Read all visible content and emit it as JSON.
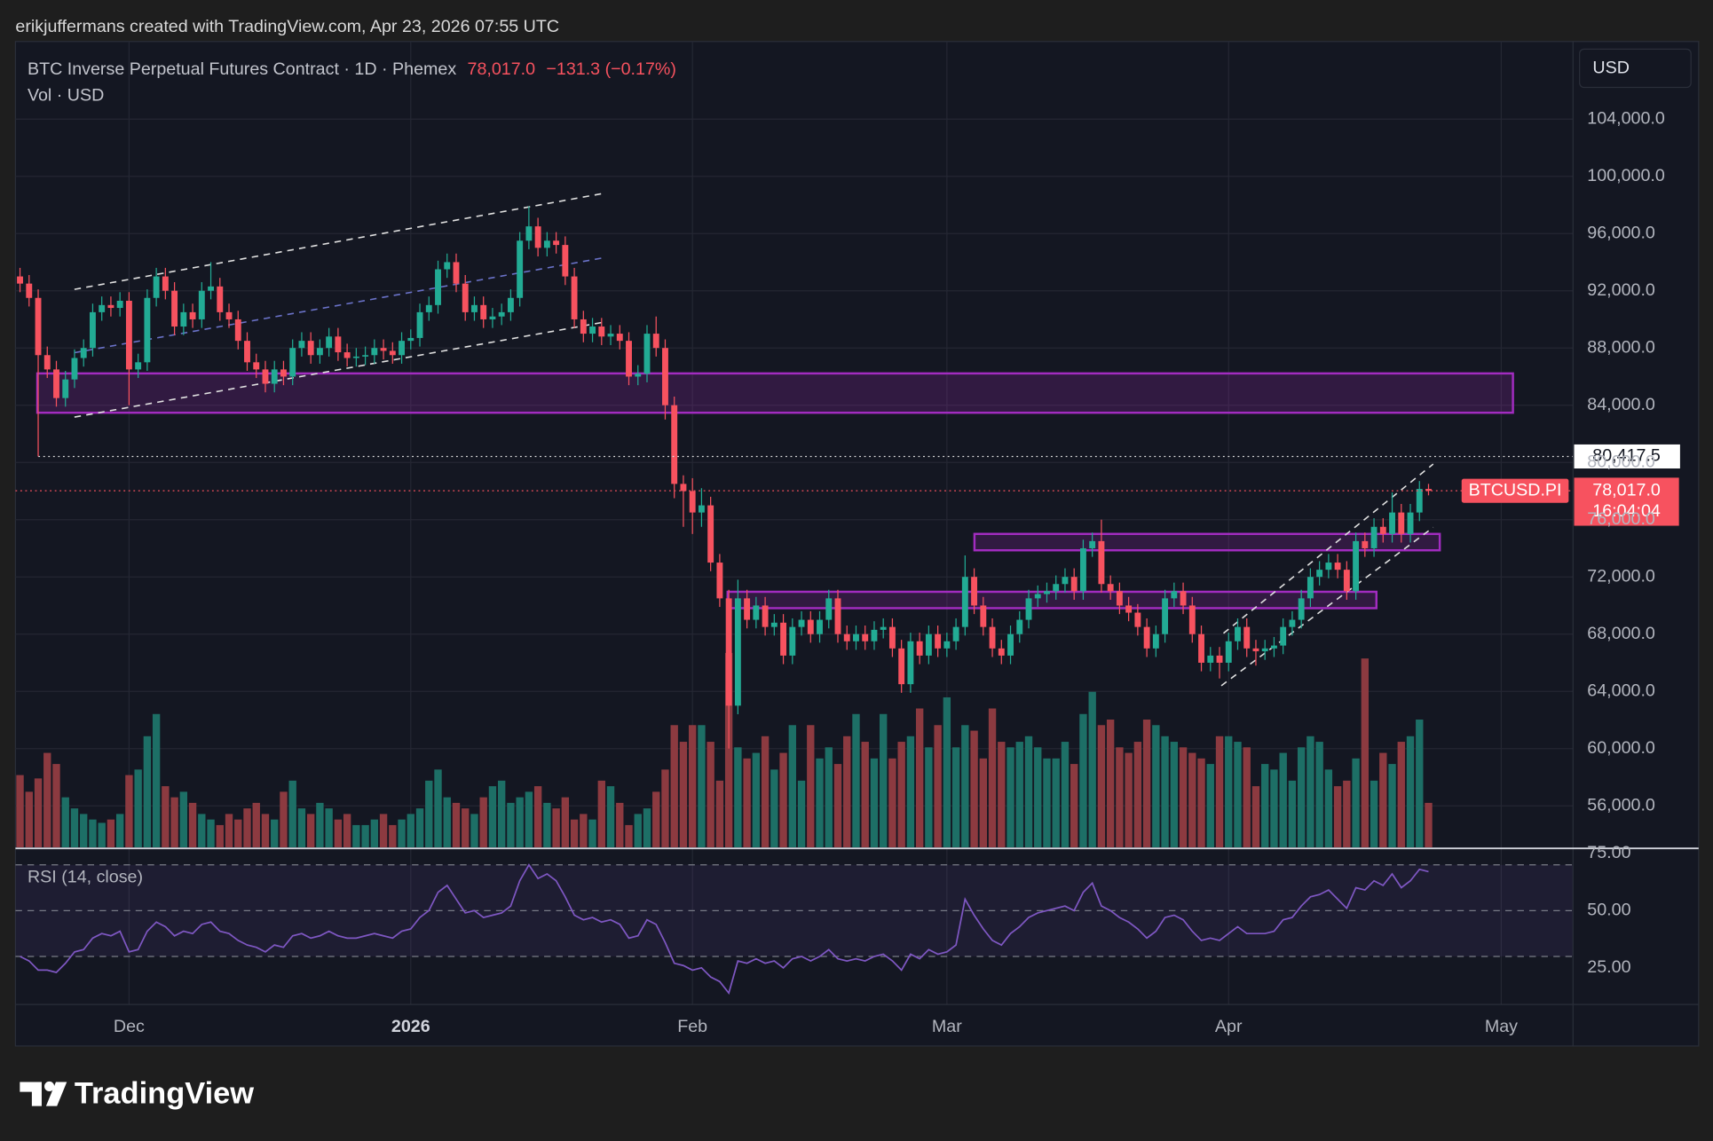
{
  "header": {
    "attribution": "erikjuffermans created with TradingView.com, Apr 23, 2026 07:55 UTC",
    "symbol": "BTC Inverse Perpetual Futures Contract · 1D · Phemex",
    "last": "78,017.0",
    "change": "−131.3 (−0.17%)",
    "volume_label": "Vol · USD",
    "currency": "USD",
    "logo": "TradingView"
  },
  "chart_data": [
    {
      "type": "candlestick",
      "up_color": "#22ab94",
      "down_color": "#f7525f",
      "xlim": [
        -0.5,
        170.9
      ],
      "xticks": [
        {
          "value": 12,
          "label": "Dec"
        },
        {
          "value": 43,
          "label": "2026"
        },
        {
          "value": 74,
          "label": "Feb"
        },
        {
          "value": 102,
          "label": "Mar"
        },
        {
          "value": 133,
          "label": "Apr"
        },
        {
          "value": 163,
          "label": "May"
        }
      ],
      "ylim": [
        53100,
        109270
      ],
      "yticks": [
        {
          "value": 56000,
          "label": "56,000.0"
        },
        {
          "value": 60000,
          "label": "60,000.0"
        },
        {
          "value": 64000,
          "label": "64,000.0"
        },
        {
          "value": 68000,
          "label": "68,000.0"
        },
        {
          "value": 72000,
          "label": "72,000.0"
        },
        {
          "value": 76000,
          "label": "76,000.0"
        },
        {
          "value": 80000,
          "label": "80,000.0"
        },
        {
          "value": 84000,
          "label": "84,000.0"
        },
        {
          "value": 88000,
          "label": "88,000.0"
        },
        {
          "value": 92000,
          "label": "92,000.0"
        },
        {
          "value": 96000,
          "label": "96,000.0"
        },
        {
          "value": 100000,
          "label": "100,000.0"
        },
        {
          "value": 104000,
          "label": "104,000.0"
        }
      ],
      "price_lines": [
        {
          "value": 80417.5,
          "label": "80,417.5"
        }
      ],
      "last_price": {
        "value": 78017,
        "label": "78,017.0",
        "symbol": "BTCUSD.PI",
        "countdown": "16:04:04"
      },
      "open": [
        93000,
        92500,
        91500,
        87500,
        86500,
        84500,
        85800,
        87300,
        88000,
        90500,
        91000,
        90800,
        91300,
        86500,
        87000,
        91500,
        93000,
        92000,
        89500,
        90500,
        90000,
        92000,
        92300,
        90500,
        90000,
        88500,
        87000,
        86500,
        85500,
        86500,
        86000,
        88000,
        88500,
        87500,
        88000,
        88800,
        87700,
        87300,
        87400,
        87500,
        88000,
        87800,
        87500,
        88500,
        88700,
        90500,
        91000,
        93500,
        94000,
        92500,
        90500,
        91000,
        90000,
        90200,
        90500,
        91500,
        95500,
        96500,
        95000,
        95500,
        95200,
        93000,
        90000,
        89000,
        89500,
        88800,
        89000,
        88500,
        86000,
        86200,
        89000,
        88000,
        84000,
        78500,
        78000,
        76500,
        77000,
        73000,
        70500,
        63000,
        70500,
        69000,
        70000,
        68500,
        68800,
        66500,
        68500,
        69000,
        68000,
        69000,
        70500,
        68000,
        67500,
        68000,
        67500,
        68300,
        68500,
        67000,
        64500,
        67500,
        66500,
        68000,
        67000,
        67500,
        68500,
        72000,
        70000,
        68500,
        67000,
        66500,
        68000,
        69000,
        70500,
        70800,
        71000,
        71500,
        72000,
        71000,
        74000,
        74500,
        71500,
        71000,
        70000,
        69500,
        68500,
        67000,
        68000,
        70500,
        71000,
        70000,
        68000,
        66000,
        66500,
        66000,
        67500,
        68500,
        67000,
        66800,
        67000,
        67200,
        68500,
        69000,
        70500,
        72000,
        72500,
        73000,
        72500,
        71000,
        74500,
        74000,
        75500,
        75000,
        76500,
        75000,
        76500,
        78148.3
      ],
      "high": [
        93600,
        93100,
        92100,
        88100,
        87100,
        86400,
        87900,
        88600,
        91100,
        91600,
        91600,
        91900,
        91900,
        87600,
        92100,
        93600,
        93600,
        92600,
        91100,
        91100,
        92600,
        94000,
        92900,
        91100,
        90600,
        89100,
        87600,
        87100,
        87100,
        87100,
        88600,
        89100,
        89100,
        88600,
        89400,
        89400,
        88300,
        88000,
        88100,
        88600,
        88600,
        88400,
        89100,
        89300,
        91100,
        91600,
        94100,
        94600,
        94600,
        93100,
        91600,
        91600,
        90800,
        91100,
        92100,
        96100,
        97900,
        97100,
        96100,
        96100,
        95800,
        93600,
        90600,
        90100,
        90100,
        89600,
        89600,
        89100,
        86800,
        89600,
        90200,
        88600,
        84600,
        79100,
        78900,
        78200,
        77600,
        73600,
        71100,
        71800,
        71100,
        70600,
        70600,
        69400,
        69400,
        69100,
        69600,
        69600,
        69600,
        71100,
        71100,
        68600,
        68600,
        68600,
        68900,
        69100,
        69100,
        67600,
        68100,
        68100,
        68600,
        68600,
        68100,
        69100,
        73500,
        72600,
        70600,
        69100,
        67600,
        68600,
        69600,
        71100,
        71400,
        71600,
        72100,
        72600,
        72600,
        74600,
        75100,
        76000,
        72100,
        71600,
        70600,
        70100,
        69100,
        68600,
        71100,
        71600,
        71600,
        70600,
        68600,
        67100,
        67100,
        68100,
        69100,
        69100,
        67600,
        67600,
        67800,
        69100,
        69600,
        71100,
        72600,
        73100,
        73600,
        73600,
        73100,
        75100,
        75100,
        76100,
        76100,
        77900,
        77100,
        77100,
        78700,
        78500
      ],
      "low": [
        91900,
        90900,
        80417.5,
        85900,
        83900,
        83900,
        85200,
        86700,
        87400,
        89900,
        90200,
        90200,
        84000,
        85900,
        86400,
        90900,
        91400,
        88900,
        88900,
        89400,
        89400,
        91400,
        89900,
        89400,
        87900,
        86400,
        85900,
        84900,
        84900,
        85400,
        85400,
        87400,
        86900,
        86900,
        87400,
        87100,
        86700,
        86700,
        86800,
        86900,
        87200,
        86900,
        86900,
        87900,
        88100,
        89900,
        90400,
        92900,
        91900,
        89900,
        89900,
        89400,
        89400,
        89600,
        89900,
        90900,
        94900,
        94400,
        94400,
        94600,
        92400,
        89400,
        88400,
        88400,
        88200,
        88200,
        87900,
        85400,
        85400,
        85600,
        87400,
        83000,
        77500,
        75500,
        75000,
        75500,
        72400,
        69900,
        60000,
        62400,
        68400,
        68400,
        67900,
        67900,
        65900,
        65900,
        67900,
        67400,
        67400,
        68400,
        67400,
        66900,
        66900,
        66900,
        66900,
        67700,
        66400,
        63900,
        63900,
        65900,
        65900,
        66400,
        66400,
        66900,
        67900,
        69400,
        67900,
        66400,
        65900,
        65900,
        67400,
        68400,
        69900,
        70200,
        70400,
        70900,
        70400,
        70400,
        73400,
        70900,
        70400,
        69400,
        68900,
        67900,
        66400,
        66400,
        67400,
        69900,
        69400,
        67400,
        65400,
        65400,
        64900,
        65400,
        66900,
        66400,
        65800,
        66200,
        66400,
        66600,
        67900,
        68400,
        69900,
        71400,
        71900,
        71900,
        70400,
        70400,
        73400,
        73400,
        74400,
        74400,
        74400,
        74400,
        75900,
        77700
      ],
      "close": [
        92500,
        91500,
        87500,
        86500,
        84500,
        85800,
        87300,
        88000,
        90500,
        91000,
        90800,
        91300,
        86500,
        87000,
        91500,
        93000,
        92000,
        89500,
        90500,
        90000,
        92000,
        92300,
        90500,
        90000,
        88500,
        87000,
        86500,
        85500,
        86500,
        86000,
        88000,
        88500,
        87500,
        88000,
        88800,
        87700,
        87300,
        87400,
        87500,
        88000,
        87800,
        87500,
        88500,
        88700,
        90500,
        91000,
        93500,
        94000,
        92500,
        90500,
        91000,
        90000,
        90200,
        90500,
        91500,
        95500,
        96500,
        95000,
        95500,
        95200,
        93000,
        90000,
        89000,
        89500,
        88800,
        89000,
        88500,
        86000,
        86200,
        89000,
        88000,
        84000,
        78500,
        78000,
        76500,
        77000,
        73000,
        70500,
        63000,
        70500,
        69000,
        70000,
        68500,
        68800,
        66500,
        68500,
        69000,
        68000,
        69000,
        70500,
        68000,
        67500,
        68000,
        67500,
        68300,
        68500,
        67000,
        64500,
        67500,
        66500,
        68000,
        67000,
        67500,
        68500,
        72000,
        70000,
        68500,
        67000,
        66500,
        68000,
        69000,
        70500,
        70800,
        71000,
        71500,
        72000,
        71000,
        74000,
        74500,
        71500,
        71000,
        70000,
        69500,
        68500,
        67000,
        68000,
        70500,
        71000,
        70000,
        68000,
        66000,
        66500,
        66000,
        67500,
        68500,
        67000,
        66800,
        67000,
        67200,
        68500,
        69000,
        70500,
        72000,
        72500,
        73000,
        72500,
        71000,
        74500,
        74000,
        75500,
        75000,
        76500,
        75000,
        76500,
        78148.3,
        78017
      ]
    },
    {
      "type": "bar",
      "up_color": "#1d6f66",
      "down_color": "#8c3a40",
      "values": [
        65,
        50,
        62,
        85,
        75,
        45,
        35,
        30,
        25,
        22,
        25,
        30,
        65,
        70,
        100,
        120,
        55,
        45,
        50,
        40,
        30,
        25,
        20,
        30,
        25,
        35,
        40,
        30,
        25,
        50,
        60,
        35,
        30,
        40,
        35,
        25,
        30,
        20,
        20,
        25,
        30,
        20,
        25,
        30,
        35,
        60,
        70,
        45,
        40,
        35,
        30,
        45,
        55,
        60,
        40,
        45,
        50,
        55,
        40,
        35,
        45,
        25,
        30,
        25,
        60,
        55,
        40,
        20,
        30,
        35,
        50,
        70,
        110,
        95,
        110,
        110,
        95,
        60,
        175,
        90,
        80,
        85,
        100,
        70,
        85,
        110,
        60,
        110,
        80,
        90,
        75,
        100,
        120,
        95,
        80,
        120,
        80,
        95,
        100,
        125,
        90,
        110,
        135,
        90,
        110,
        105,
        80,
        125,
        95,
        90,
        95,
        100,
        90,
        80,
        80,
        95,
        75,
        120,
        140,
        110,
        115,
        90,
        85,
        95,
        115,
        110,
        100,
        95,
        90,
        85,
        80,
        75,
        100,
        100,
        95,
        90,
        55,
        75,
        70,
        85,
        60,
        90,
        100,
        95,
        70,
        55,
        60,
        80,
        170,
        60,
        85,
        75,
        95,
        100,
        115,
        40
      ]
    },
    {
      "type": "line",
      "title": "RSI (14, close)",
      "color": "#7e57c2",
      "ylim": [
        9.0,
        76.7
      ],
      "yticks": [
        {
          "value": 25,
          "label": "25.00"
        },
        {
          "value": 50,
          "label": "50.00"
        },
        {
          "value": 75,
          "label": "75.00"
        }
      ],
      "bands": [
        30,
        50,
        70
      ],
      "values": [
        30,
        28,
        24,
        24,
        23,
        27,
        32,
        33,
        38,
        40,
        39,
        41,
        32,
        33,
        41,
        45,
        43,
        39,
        41,
        40,
        44,
        45,
        41,
        40,
        37,
        35,
        34,
        32,
        35,
        34,
        39,
        40,
        38,
        39,
        41,
        39,
        38,
        38,
        39,
        40,
        39,
        38,
        41,
        42,
        47,
        50,
        58,
        61,
        55,
        49,
        50,
        47,
        48,
        49,
        52,
        63,
        70,
        64,
        66,
        63,
        56,
        48,
        46,
        47,
        45,
        46,
        44,
        38,
        39,
        46,
        44,
        36,
        27,
        26,
        24,
        25,
        21,
        19,
        14,
        28,
        27,
        29,
        27,
        28,
        25,
        29,
        30,
        28,
        30,
        33,
        29,
        28,
        29,
        28,
        30,
        31,
        28,
        24,
        31,
        29,
        33,
        31,
        32,
        35,
        55,
        48,
        42,
        37,
        35,
        40,
        43,
        47,
        49,
        50,
        51,
        52,
        50,
        58,
        62,
        52,
        50,
        47,
        45,
        42,
        38,
        41,
        47,
        48,
        46,
        41,
        37,
        38,
        37,
        40,
        43,
        40,
        40,
        40,
        41,
        46,
        47,
        52,
        56,
        57,
        59,
        55,
        51,
        60,
        59,
        63,
        61,
        66,
        60,
        63,
        68,
        67
      ]
    }
  ]
}
